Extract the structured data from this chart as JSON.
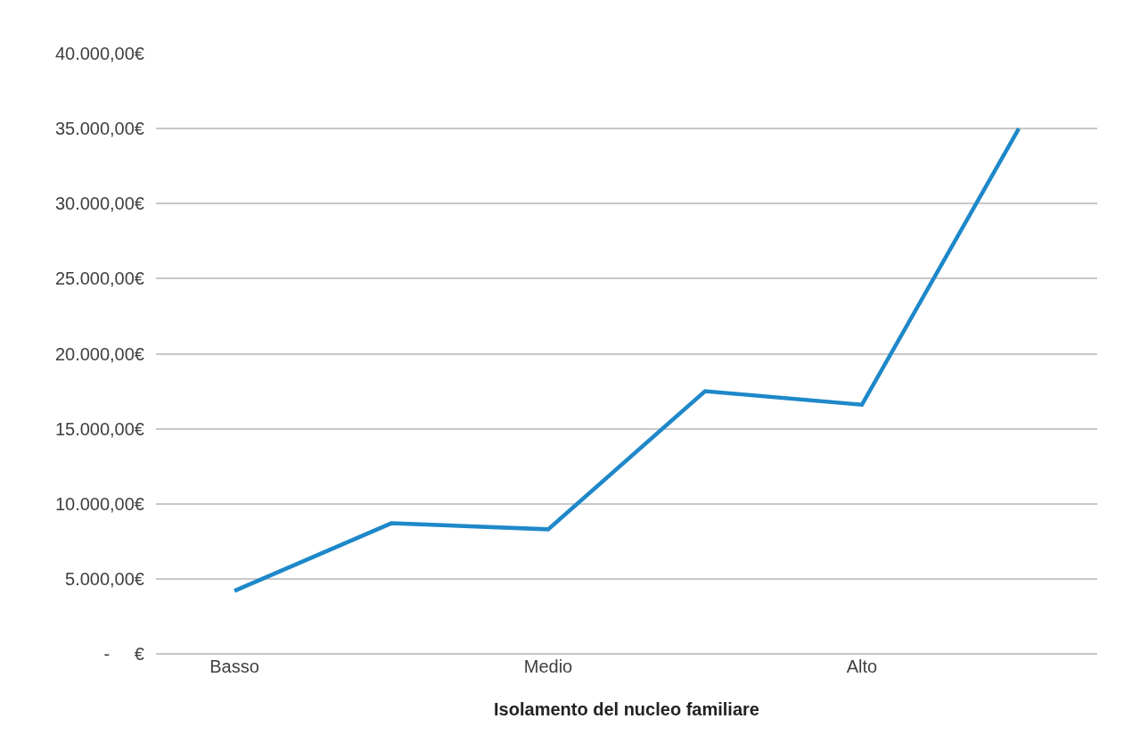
{
  "chart_data": {
    "type": "line",
    "xlabel": "Isolamento del nucleo familiare",
    "categories": [
      "Basso",
      null,
      "Medio",
      null,
      "Alto",
      null
    ],
    "series": [
      {
        "color": "#1e88c9",
        "values": [
          4200,
          8700,
          8300,
          17500,
          16600,
          35000
        ]
      }
    ],
    "ylim": [
      0,
      40000
    ],
    "yticks": [
      {
        "value": 0,
        "label": "-     €"
      },
      {
        "value": 5000,
        "label": "5.000,00€"
      },
      {
        "value": 10000,
        "label": "10.000,00€"
      },
      {
        "value": 15000,
        "label": "15.000,00€"
      },
      {
        "value": 20000,
        "label": "20.000,00€"
      },
      {
        "value": 25000,
        "label": "25.000,00€"
      },
      {
        "value": 30000,
        "label": "30.000,00€"
      },
      {
        "value": 35000,
        "label": "35.000,00€"
      },
      {
        "value": 40000,
        "label": "40.000,00€"
      }
    ],
    "grid": "y",
    "marker": "none",
    "line_style": "solid"
  }
}
